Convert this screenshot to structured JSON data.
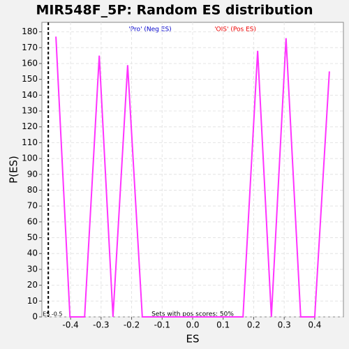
{
  "chart_data": {
    "type": "line",
    "title": "MIR548F_5P: Random ES distribution",
    "xlabel": "ES",
    "ylabel": "P(ES)",
    "legend": [
      {
        "text": "'Pro' (Neg ES)",
        "color": "#0000cc"
      },
      {
        "text": "'OIS' (Pos ES)",
        "color": "#ee0000"
      }
    ],
    "annotation": "Sets with pos scores: 50%",
    "marker": {
      "label": "ES -0.5",
      "value": -0.473
    },
    "x": [
      -0.448,
      -0.402,
      -0.354,
      -0.306,
      -0.261,
      -0.213,
      -0.165,
      0.165,
      0.213,
      0.258,
      0.306,
      0.354,
      0.4,
      0.448
    ],
    "series": [
      {
        "name": "P(ES)",
        "color": "#ff33ff",
        "values": [
          177,
          0,
          0,
          165,
          0,
          159,
          0,
          0,
          168,
          0,
          176,
          0,
          0,
          155
        ]
      }
    ],
    "xlim": [
      -0.494,
      0.494
    ],
    "ylim": [
      0,
      186
    ],
    "xticks": [
      -0.4,
      -0.3,
      -0.2,
      -0.1,
      {
        "value": 0,
        "label": "0.0"
      },
      0.1,
      0.2,
      0.3,
      0.4
    ],
    "yticks": [
      0,
      10,
      20,
      30,
      40,
      50,
      60,
      70,
      80,
      90,
      100,
      110,
      120,
      130,
      140,
      150,
      160,
      170,
      180
    ],
    "grid": true
  }
}
